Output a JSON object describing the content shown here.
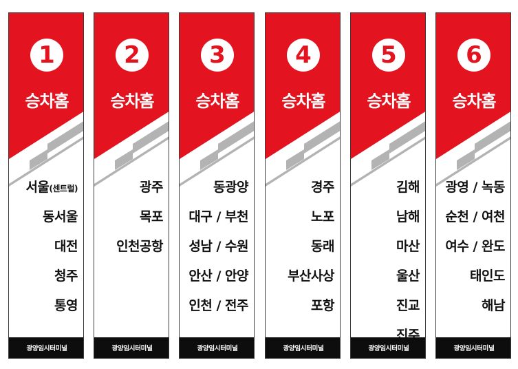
{
  "colors": {
    "red": "#e3141f",
    "gray": "#b3b3b3",
    "footer": "#0d0d0d",
    "text": "#111111"
  },
  "banners": [
    {
      "number": "1",
      "title": "승차홈",
      "destinations": [
        {
          "text": "서울",
          "sub": "(센트럴)"
        },
        {
          "text": "동서울"
        },
        {
          "text": "대전"
        },
        {
          "text": "청주"
        },
        {
          "text": "통영"
        }
      ],
      "footer": "광양임시터미널"
    },
    {
      "number": "2",
      "title": "승차홈",
      "destinations": [
        {
          "text": "광주"
        },
        {
          "text": "목포"
        },
        {
          "text": "인천공항"
        }
      ],
      "footer": "광양임시터미널"
    },
    {
      "number": "3",
      "title": "승차홈",
      "destinations": [
        {
          "text": "동광양"
        },
        {
          "text": "대구 / 부천"
        },
        {
          "text": "성남 / 수원"
        },
        {
          "text": "안산 / 안양"
        },
        {
          "text": "인천 / 전주"
        }
      ],
      "footer": "광양임시터미널"
    },
    {
      "number": "4",
      "title": "승차홈",
      "destinations": [
        {
          "text": "경주"
        },
        {
          "text": "노포"
        },
        {
          "text": "동래"
        },
        {
          "text": "부산사상"
        },
        {
          "text": "포항"
        }
      ],
      "footer": "광양임시터미널"
    },
    {
      "number": "5",
      "title": "승차홈",
      "destinations": [
        {
          "text": "김해"
        },
        {
          "text": "남해"
        },
        {
          "text": "마산"
        },
        {
          "text": "울산"
        },
        {
          "text": "진교"
        },
        {
          "text": "진주"
        }
      ],
      "footer": "광양임시터미널"
    },
    {
      "number": "6",
      "title": "승차홈",
      "destinations": [
        {
          "text": "광영 / 녹동"
        },
        {
          "text": "순천 / 여천"
        },
        {
          "text": "여수 / 완도"
        },
        {
          "text": "태인도"
        },
        {
          "text": "해남"
        }
      ],
      "footer": "광양임시터미널"
    }
  ]
}
